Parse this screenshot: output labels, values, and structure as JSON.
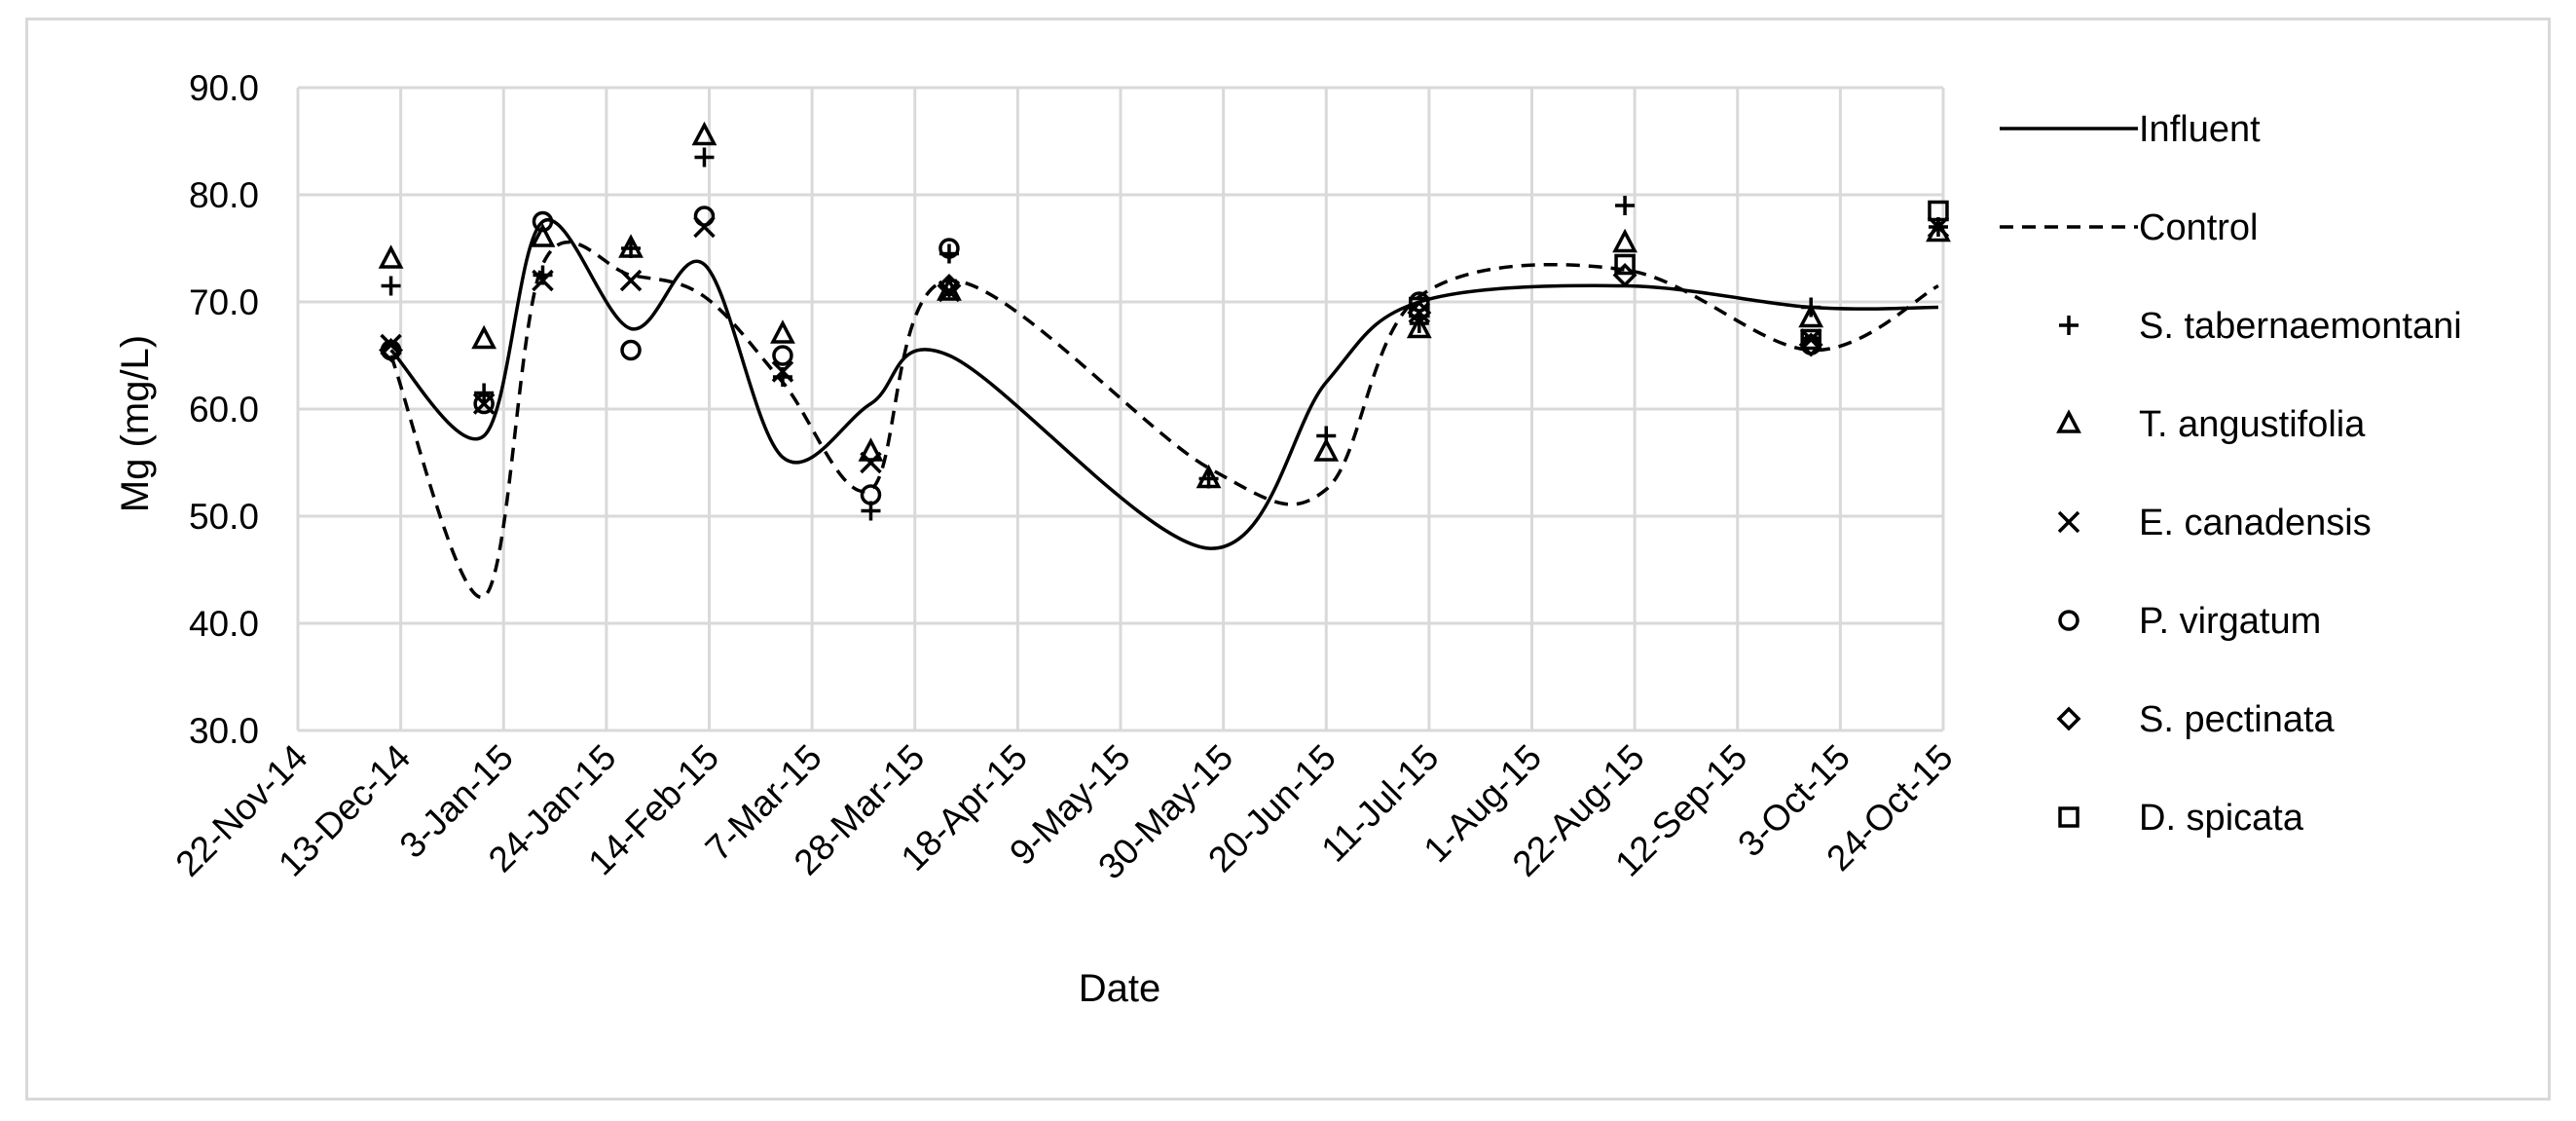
{
  "chart_data": {
    "type": "line",
    "xlabel": "Date",
    "ylabel": "Mg (mg/L)",
    "ylim": [
      30,
      90
    ],
    "y_ticks": [
      "30.0",
      "40.0",
      "50.0",
      "60.0",
      "70.0",
      "80.0",
      "90.0"
    ],
    "x_range": [
      "2014-11-22",
      "2015-10-24"
    ],
    "x_ticks": [
      "22-Nov-14",
      "13-Dec-14",
      "3-Jan-15",
      "24-Jan-15",
      "14-Feb-15",
      "7-Mar-15",
      "28-Mar-15",
      "18-Apr-15",
      "9-May-15",
      "30-May-15",
      "20-Jun-15",
      "11-Jul-15",
      "1-Aug-15",
      "22-Aug-15",
      "12-Sep-15",
      "3-Oct-15",
      "24-Oct-15"
    ],
    "grid": true,
    "legend_position": "right",
    "series": [
      {
        "name": "Influent",
        "style": "solid-line",
        "marker": "none",
        "x": [
          "2014-12-11",
          "2014-12-30",
          "2015-01-11",
          "2015-01-29",
          "2015-02-13",
          "2015-03-01",
          "2015-03-19",
          "2015-04-04",
          "2015-05-27",
          "2015-06-20",
          "2015-07-09",
          "2015-08-20",
          "2015-09-27",
          "2015-10-23"
        ],
        "y": [
          65.5,
          57.5,
          77.5,
          67.5,
          73.5,
          55.5,
          60.5,
          65,
          47,
          62.5,
          70,
          71.5,
          69.5,
          69.5
        ]
      },
      {
        "name": "Control",
        "style": "dashed-line",
        "marker": "none",
        "x": [
          "2014-12-11",
          "2014-12-30",
          "2015-01-11",
          "2015-01-29",
          "2015-02-13",
          "2015-03-01",
          "2015-03-19",
          "2015-04-04",
          "2015-05-27",
          "2015-06-20",
          "2015-07-09",
          "2015-08-20",
          "2015-09-27",
          "2015-10-23"
        ],
        "y": [
          65,
          42.5,
          73.5,
          72.5,
          70.5,
          62.5,
          52.5,
          72,
          54.5,
          52.5,
          70.5,
          73,
          65.5,
          71.5
        ]
      },
      {
        "name": "S. tabernaemontani",
        "marker": "plus",
        "x": [
          "2014-12-11",
          "2014-12-30",
          "2015-01-11",
          "2015-01-29",
          "2015-02-13",
          "2015-03-01",
          "2015-03-19",
          "2015-04-04",
          "2015-05-27",
          "2015-06-20",
          "2015-07-09",
          "2015-08-20",
          "2015-09-27",
          "2015-10-23"
        ],
        "y": [
          71.5,
          61.5,
          72.5,
          75,
          83.5,
          63,
          50.5,
          74.5,
          53.5,
          57.5,
          68,
          79,
          69.5,
          77
        ]
      },
      {
        "name": "T. angustifolia",
        "marker": "triangle",
        "x": [
          "2014-12-11",
          "2014-12-30",
          "2015-01-11",
          "2015-01-29",
          "2015-02-13",
          "2015-03-01",
          "2015-03-19",
          "2015-04-04",
          "2015-05-27",
          "2015-06-20",
          "2015-07-09",
          "2015-08-20",
          "2015-09-27",
          "2015-10-23"
        ],
        "y": [
          74,
          66.5,
          76,
          75,
          85.5,
          67,
          56,
          71,
          53.5,
          56,
          67.5,
          75.5,
          68.5,
          76.5
        ]
      },
      {
        "name": "E. canadensis",
        "marker": "x",
        "x": [
          "2014-12-11",
          "2014-12-30",
          "2015-01-11",
          "2015-01-29",
          "2015-02-13",
          "2015-03-01",
          "2015-03-19",
          "2015-04-04",
          "2015-07-09",
          "2015-09-27",
          "2015-10-23"
        ],
        "y": [
          66,
          60.5,
          72,
          72,
          77,
          63.5,
          55,
          71,
          69,
          66.5,
          77
        ]
      },
      {
        "name": "P. virgatum",
        "marker": "circle",
        "x": [
          "2014-12-11",
          "2014-12-30",
          "2015-01-11",
          "2015-01-29",
          "2015-02-13",
          "2015-03-01",
          "2015-03-19",
          "2015-04-04",
          "2015-07-09",
          "2015-09-27"
        ],
        "y": [
          65.5,
          60.5,
          77.5,
          65.5,
          78,
          65,
          52,
          75,
          70,
          66
        ]
      },
      {
        "name": "S. pectinata",
        "marker": "diamond",
        "x": [
          "2014-12-11",
          "2015-04-04",
          "2015-07-09",
          "2015-08-20",
          "2015-09-27"
        ],
        "y": [
          65.5,
          71.5,
          69,
          72.5,
          66
        ]
      },
      {
        "name": "D. spicata",
        "marker": "square",
        "x": [
          "2015-07-09",
          "2015-08-20",
          "2015-09-27",
          "2015-10-23"
        ],
        "y": [
          69.5,
          73.5,
          66.5,
          78.5
        ]
      }
    ]
  }
}
